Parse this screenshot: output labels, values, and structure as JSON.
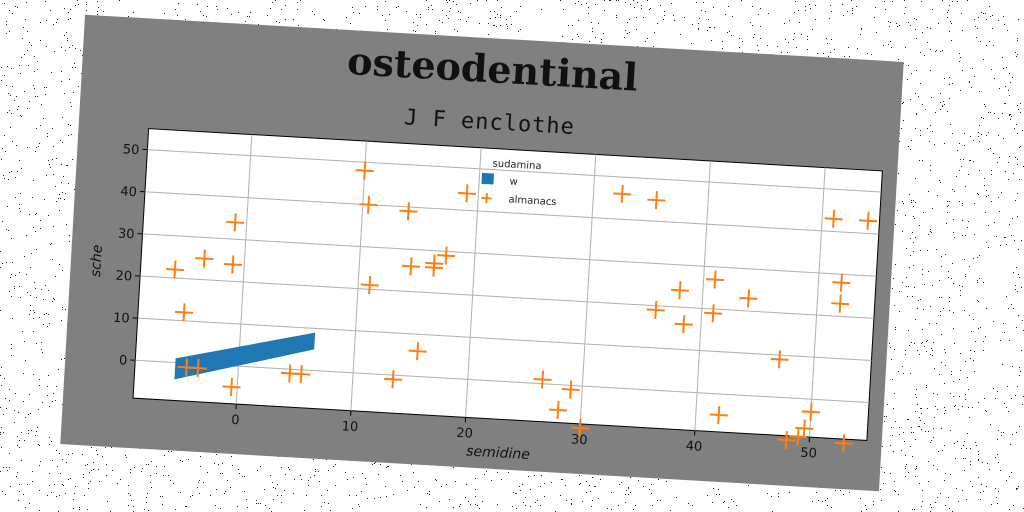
{
  "figure": {
    "title": "osteodentinal",
    "subtitle": "J F enclothe"
  },
  "colors": {
    "figure_bg": "#808080",
    "plot_bg": "#ffffff",
    "band": "#1f77b4",
    "markers": "#ff7f0e",
    "grid": "#b0b0b0"
  },
  "chart_data": {
    "type": "scatter",
    "title": "J F enclothe",
    "xlabel": "semidine",
    "ylabel": "sche",
    "xlim": [
      -9,
      55
    ],
    "ylim": [
      -9,
      55
    ],
    "xticks": [
      0,
      10,
      20,
      30,
      40,
      50
    ],
    "yticks": [
      0,
      10,
      20,
      30,
      40,
      50
    ],
    "grid": true,
    "legend": {
      "title": "sudamina",
      "placement": "upper-center",
      "entries": [
        "w",
        "almanacs"
      ]
    },
    "band": {
      "name": "w",
      "x": [
        -5.5,
        6.5
      ],
      "lower": [
        -4,
        5
      ],
      "upper": [
        1,
        9
      ]
    },
    "series": [
      {
        "name": "almanacs",
        "marker": "+",
        "points": [
          [
            -6,
            22
          ],
          [
            -5,
            12
          ],
          [
            -3.5,
            25
          ],
          [
            -1,
            24
          ],
          [
            -1,
            34
          ],
          [
            -4.5,
            -1
          ],
          [
            -3.5,
            -1
          ],
          [
            -0.5,
            -5
          ],
          [
            4.5,
            -1
          ],
          [
            5.5,
            -1
          ],
          [
            10,
            48
          ],
          [
            10.5,
            40
          ],
          [
            11,
            21
          ],
          [
            14,
            39
          ],
          [
            14.5,
            26
          ],
          [
            13.5,
            -1
          ],
          [
            15.5,
            6
          ],
          [
            16.5,
            27
          ],
          [
            16.5,
            26
          ],
          [
            17.5,
            29
          ],
          [
            19,
            44
          ],
          [
            26.5,
            1
          ],
          [
            28,
            -6
          ],
          [
            29,
            -1
          ],
          [
            30,
            -10
          ],
          [
            32.5,
            46
          ],
          [
            35.5,
            45
          ],
          [
            36,
            19
          ],
          [
            38,
            24
          ],
          [
            38.5,
            16
          ],
          [
            41,
            27
          ],
          [
            41,
            19
          ],
          [
            42,
            -5
          ],
          [
            44,
            23
          ],
          [
            47,
            9
          ],
          [
            48,
            -10
          ],
          [
            49,
            -9
          ],
          [
            49.5,
            -7
          ],
          [
            50,
            -3
          ],
          [
            51,
            43
          ],
          [
            52,
            28
          ],
          [
            52,
            23
          ],
          [
            53,
            -10
          ],
          [
            54,
            43
          ]
        ]
      }
    ]
  }
}
